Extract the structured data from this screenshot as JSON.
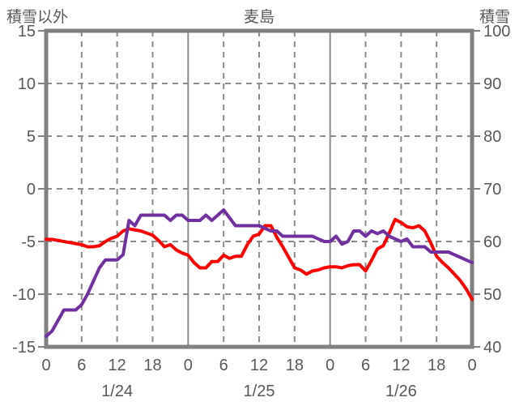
{
  "chart_data": {
    "type": "line",
    "title": "麦島",
    "left_axis": {
      "label": "積雪以外",
      "ticks": [
        15,
        10,
        5,
        0,
        -5,
        -10,
        -15
      ],
      "min": -15,
      "max": 15,
      "grid_ticks": [
        10,
        5,
        0,
        -5,
        -10
      ]
    },
    "right_axis": {
      "label": "積雪",
      "ticks": [
        100,
        90,
        80,
        70,
        60,
        50,
        40
      ],
      "min": 40,
      "max": 100
    },
    "x_axis": {
      "hours_total": 72,
      "tick_interval_hours": 6,
      "tick_labels": [
        "0",
        "6",
        "12",
        "18",
        "0",
        "6",
        "12",
        "18",
        "0",
        "6",
        "12",
        "18",
        "0"
      ],
      "day_boundary_hours": [
        24,
        48
      ],
      "day_labels": [
        {
          "text": "1/24",
          "hour": 12
        },
        {
          "text": "1/25",
          "hour": 36
        },
        {
          "text": "1/26",
          "hour": 60
        }
      ],
      "grid": true
    },
    "legend": "none",
    "series": [
      {
        "name": "red-line",
        "axis": "left",
        "color": "#ff0000",
        "x_hours": [
          0,
          1,
          2,
          3,
          4,
          5,
          6,
          7,
          8,
          9,
          10,
          11,
          12,
          13,
          14,
          15,
          16,
          17,
          18,
          19,
          20,
          21,
          22,
          23,
          24,
          25,
          26,
          27,
          28,
          29,
          30,
          31,
          32,
          33,
          34,
          35,
          36,
          37,
          38,
          39,
          40,
          41,
          42,
          43,
          44,
          45,
          46,
          47,
          48,
          49,
          50,
          51,
          52,
          53,
          54,
          55,
          56,
          57,
          58,
          59,
          60,
          61,
          62,
          63,
          64,
          65,
          66,
          67,
          68,
          69,
          70,
          71,
          72
        ],
        "values": [
          -4.8,
          -4.8,
          -4.9,
          -5.0,
          -5.1,
          -5.2,
          -5.3,
          -5.5,
          -5.5,
          -5.4,
          -5.0,
          -4.7,
          -4.5,
          -4.0,
          -3.8,
          -3.9,
          -4.0,
          -4.2,
          -4.4,
          -4.9,
          -5.5,
          -5.3,
          -5.8,
          -6.1,
          -6.3,
          -7.0,
          -7.5,
          -7.5,
          -6.9,
          -6.9,
          -6.3,
          -6.6,
          -6.4,
          -6.4,
          -5.3,
          -4.5,
          -4.3,
          -3.5,
          -3.5,
          -4.6,
          -5.5,
          -6.5,
          -7.5,
          -7.7,
          -8.1,
          -7.8,
          -7.7,
          -7.5,
          -7.4,
          -7.4,
          -7.5,
          -7.3,
          -7.2,
          -7.2,
          -7.8,
          -6.8,
          -5.7,
          -5.4,
          -4.2,
          -2.9,
          -3.2,
          -3.6,
          -3.7,
          -3.5,
          -4.0,
          -5.1,
          -6.4,
          -7.0,
          -7.5,
          -8.1,
          -8.7,
          -9.5,
          -10.5
        ]
      },
      {
        "name": "purple-line",
        "axis": "right",
        "color": "#7030a0",
        "x_hours": [
          0,
          1,
          2,
          3,
          4,
          5,
          6,
          7,
          8,
          9,
          10,
          11,
          12,
          13,
          14,
          15,
          16,
          17,
          18,
          19,
          20,
          21,
          22,
          23,
          24,
          25,
          26,
          27,
          28,
          29,
          30,
          31,
          32,
          33,
          34,
          35,
          36,
          37,
          38,
          39,
          40,
          41,
          42,
          43,
          44,
          45,
          46,
          47,
          48,
          49,
          50,
          51,
          52,
          53,
          54,
          55,
          56,
          57,
          58,
          59,
          60,
          61,
          62,
          63,
          64,
          65,
          66,
          67,
          68,
          69,
          70,
          71,
          72
        ],
        "values": [
          42,
          43,
          45,
          47,
          47,
          47,
          48,
          50,
          52.5,
          55,
          56.5,
          56.5,
          56.5,
          57.5,
          64,
          63,
          65,
          65,
          65,
          65,
          65,
          64,
          65,
          65,
          64,
          64,
          64,
          65,
          64,
          65,
          66,
          64.5,
          63,
          63,
          63,
          63,
          63,
          62.5,
          62,
          62,
          61,
          61,
          61,
          61,
          61,
          61,
          60.5,
          60,
          60,
          61,
          59.5,
          60,
          62,
          62,
          61,
          62,
          61.5,
          62,
          61,
          60.5,
          60,
          60.5,
          59,
          59,
          59,
          58,
          58,
          58,
          58,
          57.5,
          57,
          56.5,
          56
        ]
      }
    ],
    "colors": {
      "text": "#595959",
      "border": "#808080",
      "grid": "#8c8c8c",
      "background": "#ffffff",
      "series_red": "#ff0000",
      "series_purple": "#7030a0"
    }
  }
}
